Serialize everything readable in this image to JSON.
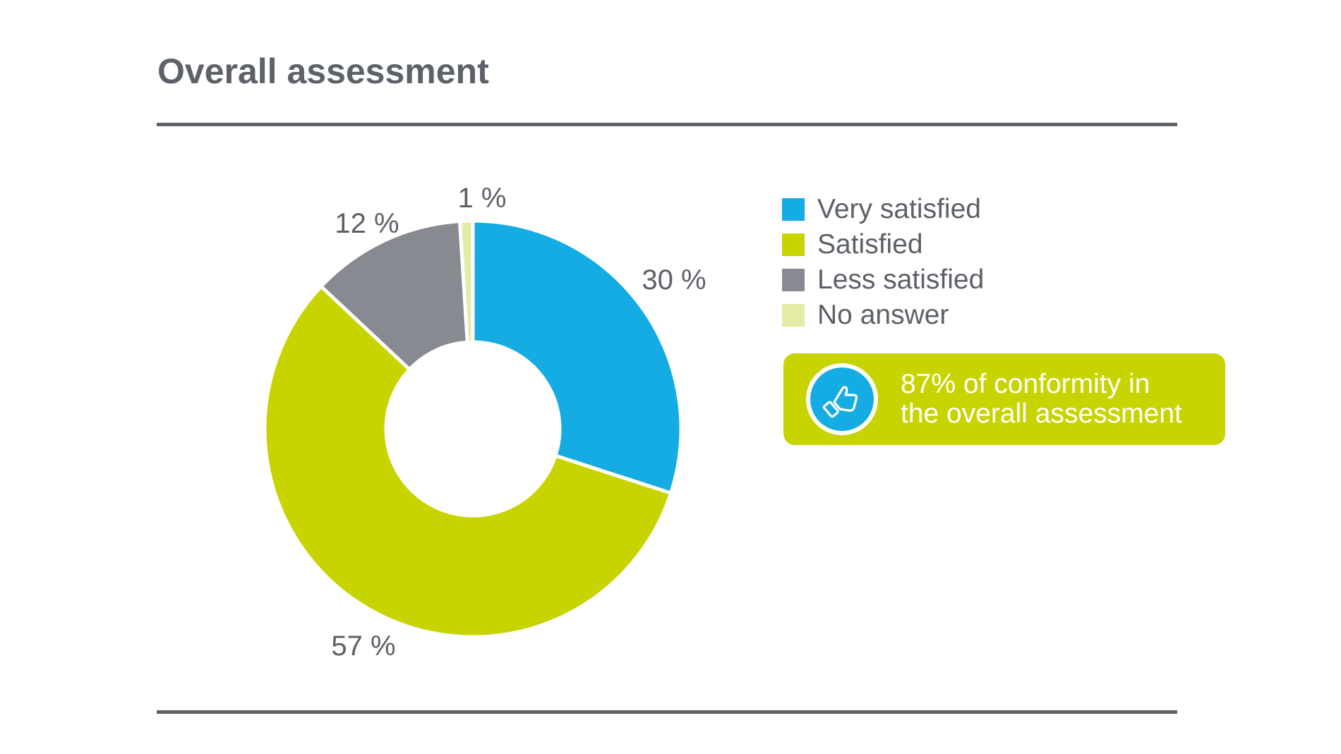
{
  "title": "Overall assessment",
  "colors": {
    "very_satisfied": "#14ace2",
    "satisfied": "#c8d400",
    "less_satisfied": "#878a91",
    "no_answer": "#e3eba6",
    "text": "#5c6167"
  },
  "chart_data": {
    "type": "pie",
    "donut": true,
    "categories": [
      "Very satisfied",
      "Satisfied",
      "Less satisfied",
      "No answer"
    ],
    "values": [
      30,
      57,
      12,
      1
    ],
    "value_labels": [
      "30 %",
      "57 %",
      "12 %",
      "1 %"
    ],
    "unit": "%",
    "legend_position": "right"
  },
  "legend": {
    "items": [
      {
        "label": "Very satisfied"
      },
      {
        "label": "Satisfied"
      },
      {
        "label": "Less satisfied"
      },
      {
        "label": "No answer"
      }
    ]
  },
  "callout": {
    "line1": "87% of conformity in",
    "line2": "the overall assessment",
    "icon": "thumbs-up-icon"
  }
}
